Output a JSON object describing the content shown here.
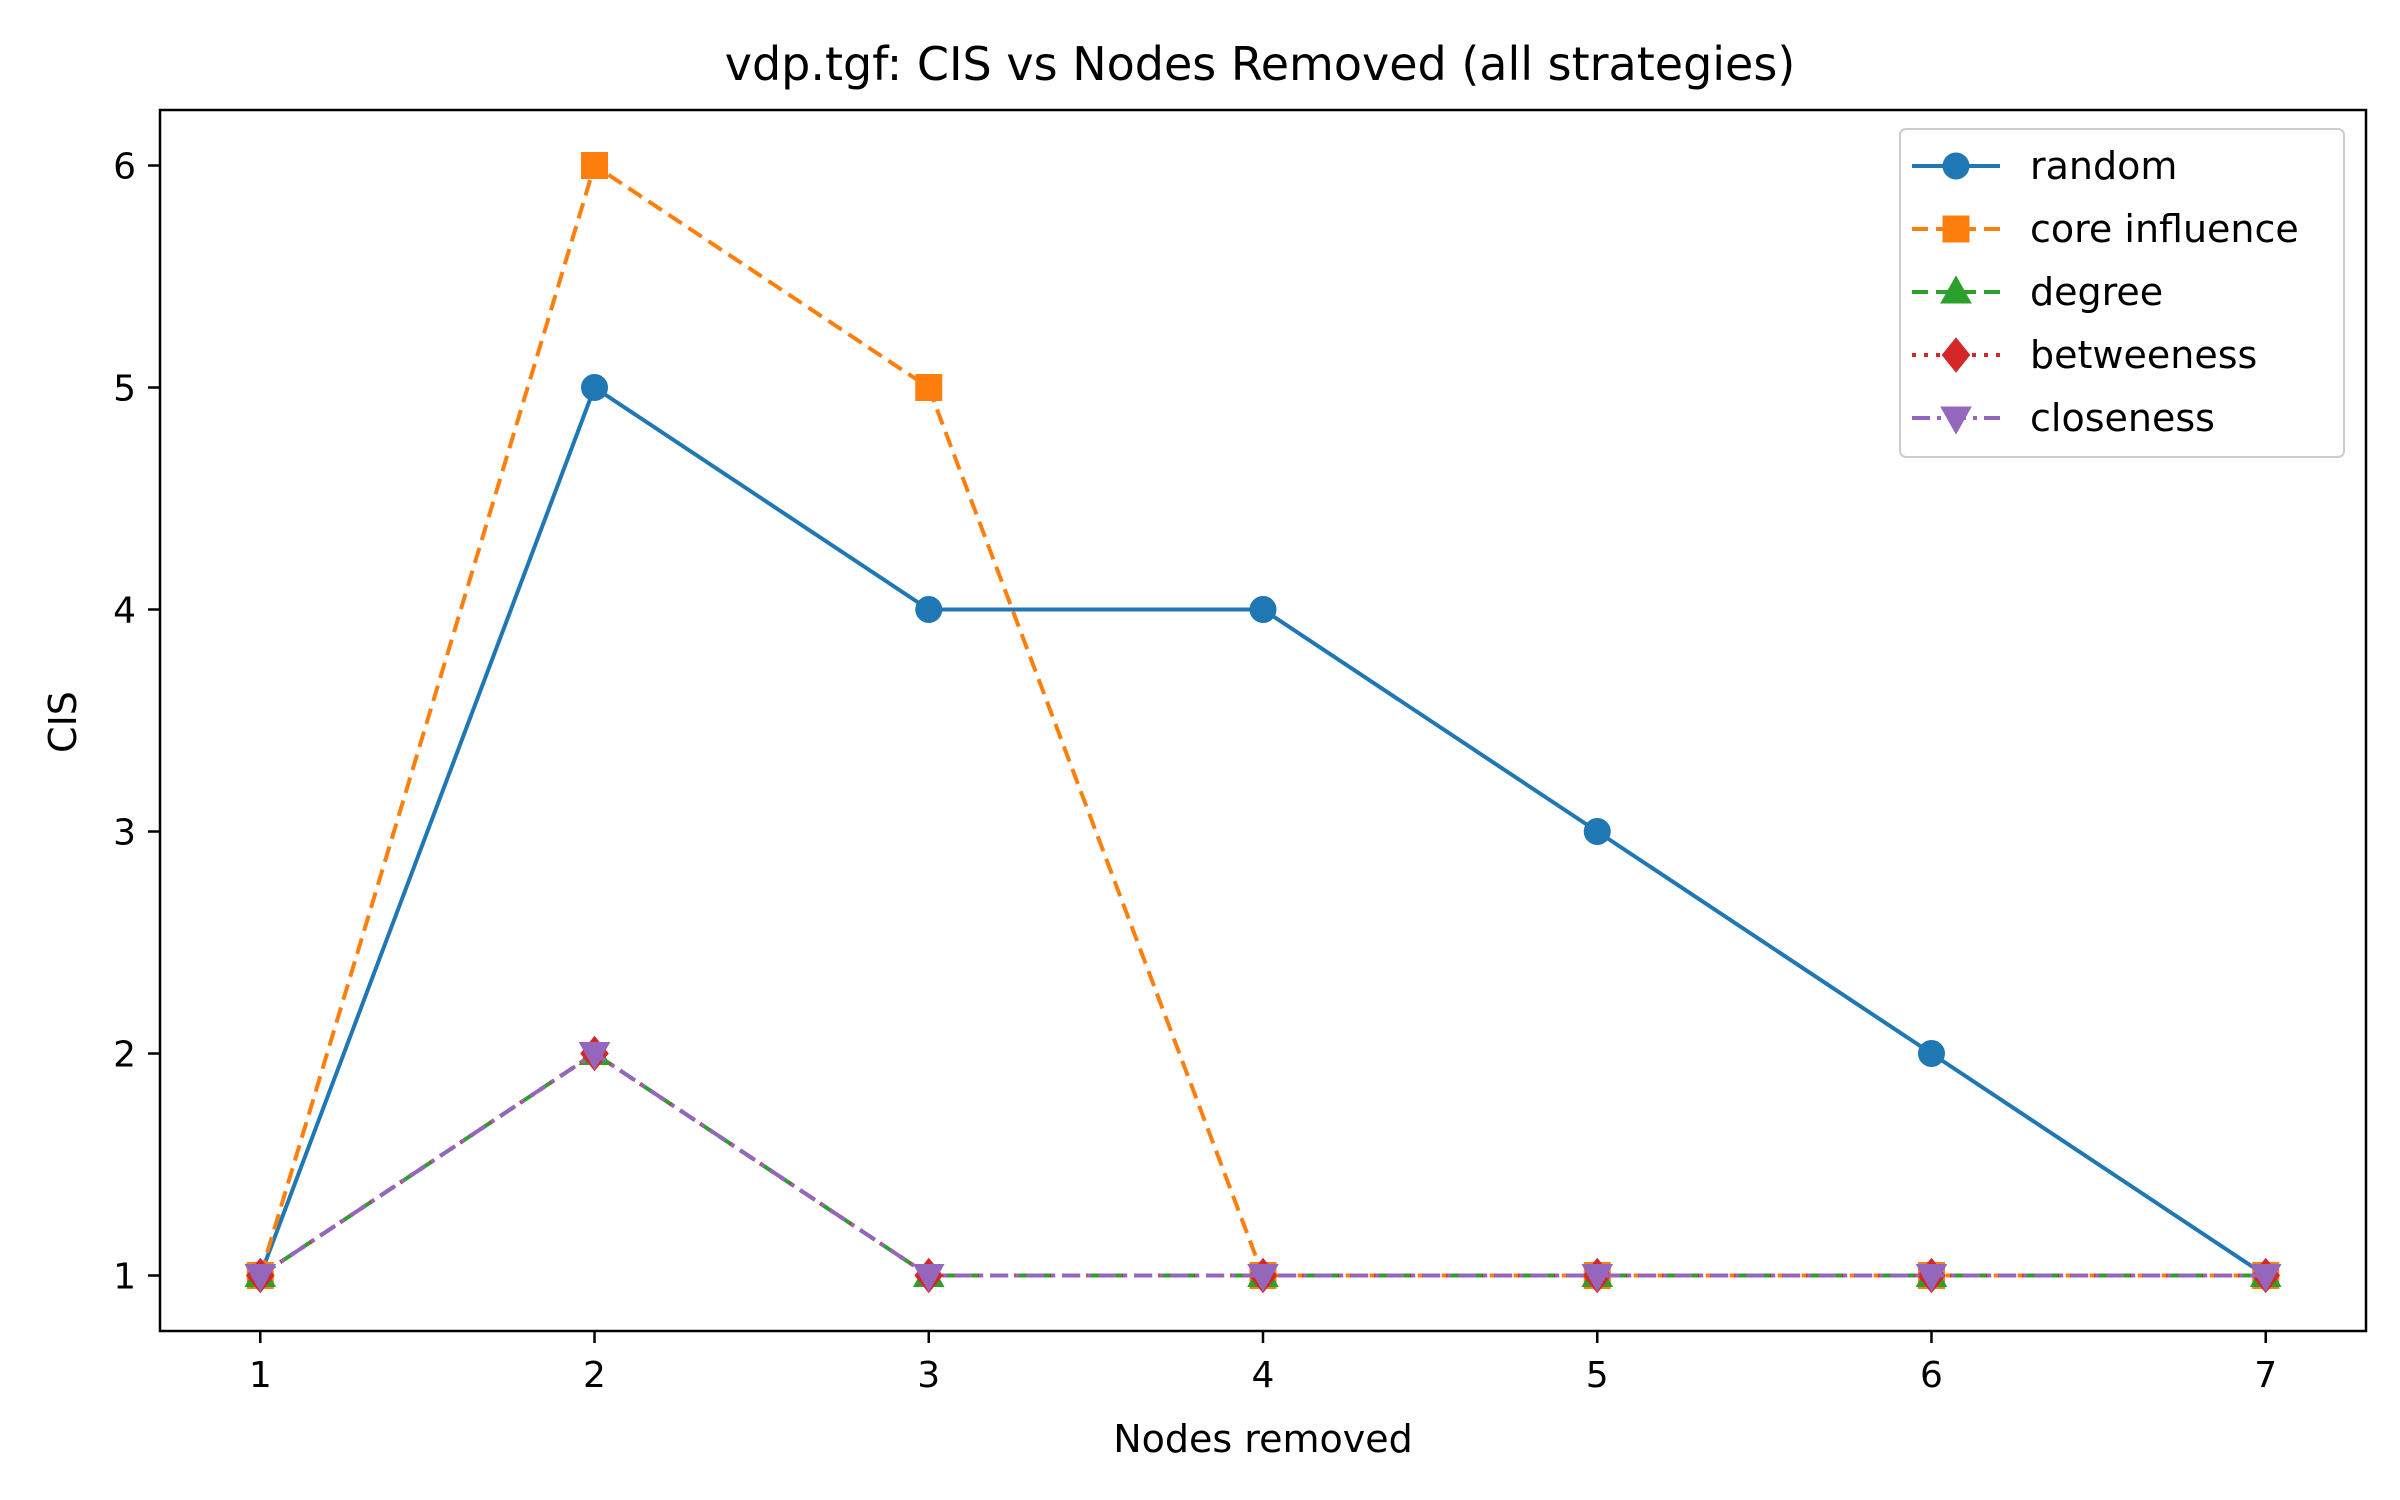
{
  "chart_data": {
    "type": "line",
    "title": "vdp.tgf: CIS vs Nodes Removed (all strategies)",
    "xlabel": "Nodes removed",
    "ylabel": "CIS",
    "x": [
      1,
      2,
      3,
      4,
      5,
      6,
      7
    ],
    "xlim": [
      0.7,
      7.3
    ],
    "ylim": [
      0.75,
      6.25
    ],
    "xticks": [
      1,
      2,
      3,
      4,
      5,
      6,
      7
    ],
    "yticks": [
      1,
      2,
      3,
      4,
      5,
      6
    ],
    "grid": false,
    "legend_position": "top-right",
    "series": [
      {
        "name": "random",
        "color": "#1f77b4",
        "linestyle": "solid",
        "marker": "circle",
        "x": [
          1,
          2,
          3,
          4,
          5,
          6,
          7
        ],
        "values": [
          1,
          5,
          4,
          4,
          3,
          2,
          1
        ]
      },
      {
        "name": "core influence",
        "color": "#ff7f0e",
        "linestyle": "dashed",
        "marker": "square",
        "x": [
          1,
          2,
          3,
          4,
          5,
          6,
          7
        ],
        "values": [
          1,
          6,
          5,
          1,
          1,
          1,
          1
        ]
      },
      {
        "name": "degree",
        "color": "#2ca02c",
        "linestyle": "dashed",
        "marker": "triangle-up",
        "x": [
          1,
          2,
          3,
          4,
          5,
          6,
          7
        ],
        "values": [
          1,
          2,
          1,
          1,
          1,
          1,
          1
        ]
      },
      {
        "name": "betweeness",
        "color": "#d62728",
        "linestyle": "dotted",
        "marker": "diamond",
        "x": [
          1,
          2,
          3,
          4,
          5,
          6,
          7
        ],
        "values": [
          1,
          2,
          1,
          1,
          1,
          1,
          1
        ]
      },
      {
        "name": "closeness",
        "color": "#9467bd",
        "linestyle": "dashdot",
        "marker": "triangle-down",
        "x": [
          1,
          2,
          3,
          4,
          5,
          6,
          7
        ],
        "values": [
          1,
          2,
          1,
          1,
          1,
          1,
          1
        ]
      }
    ]
  }
}
